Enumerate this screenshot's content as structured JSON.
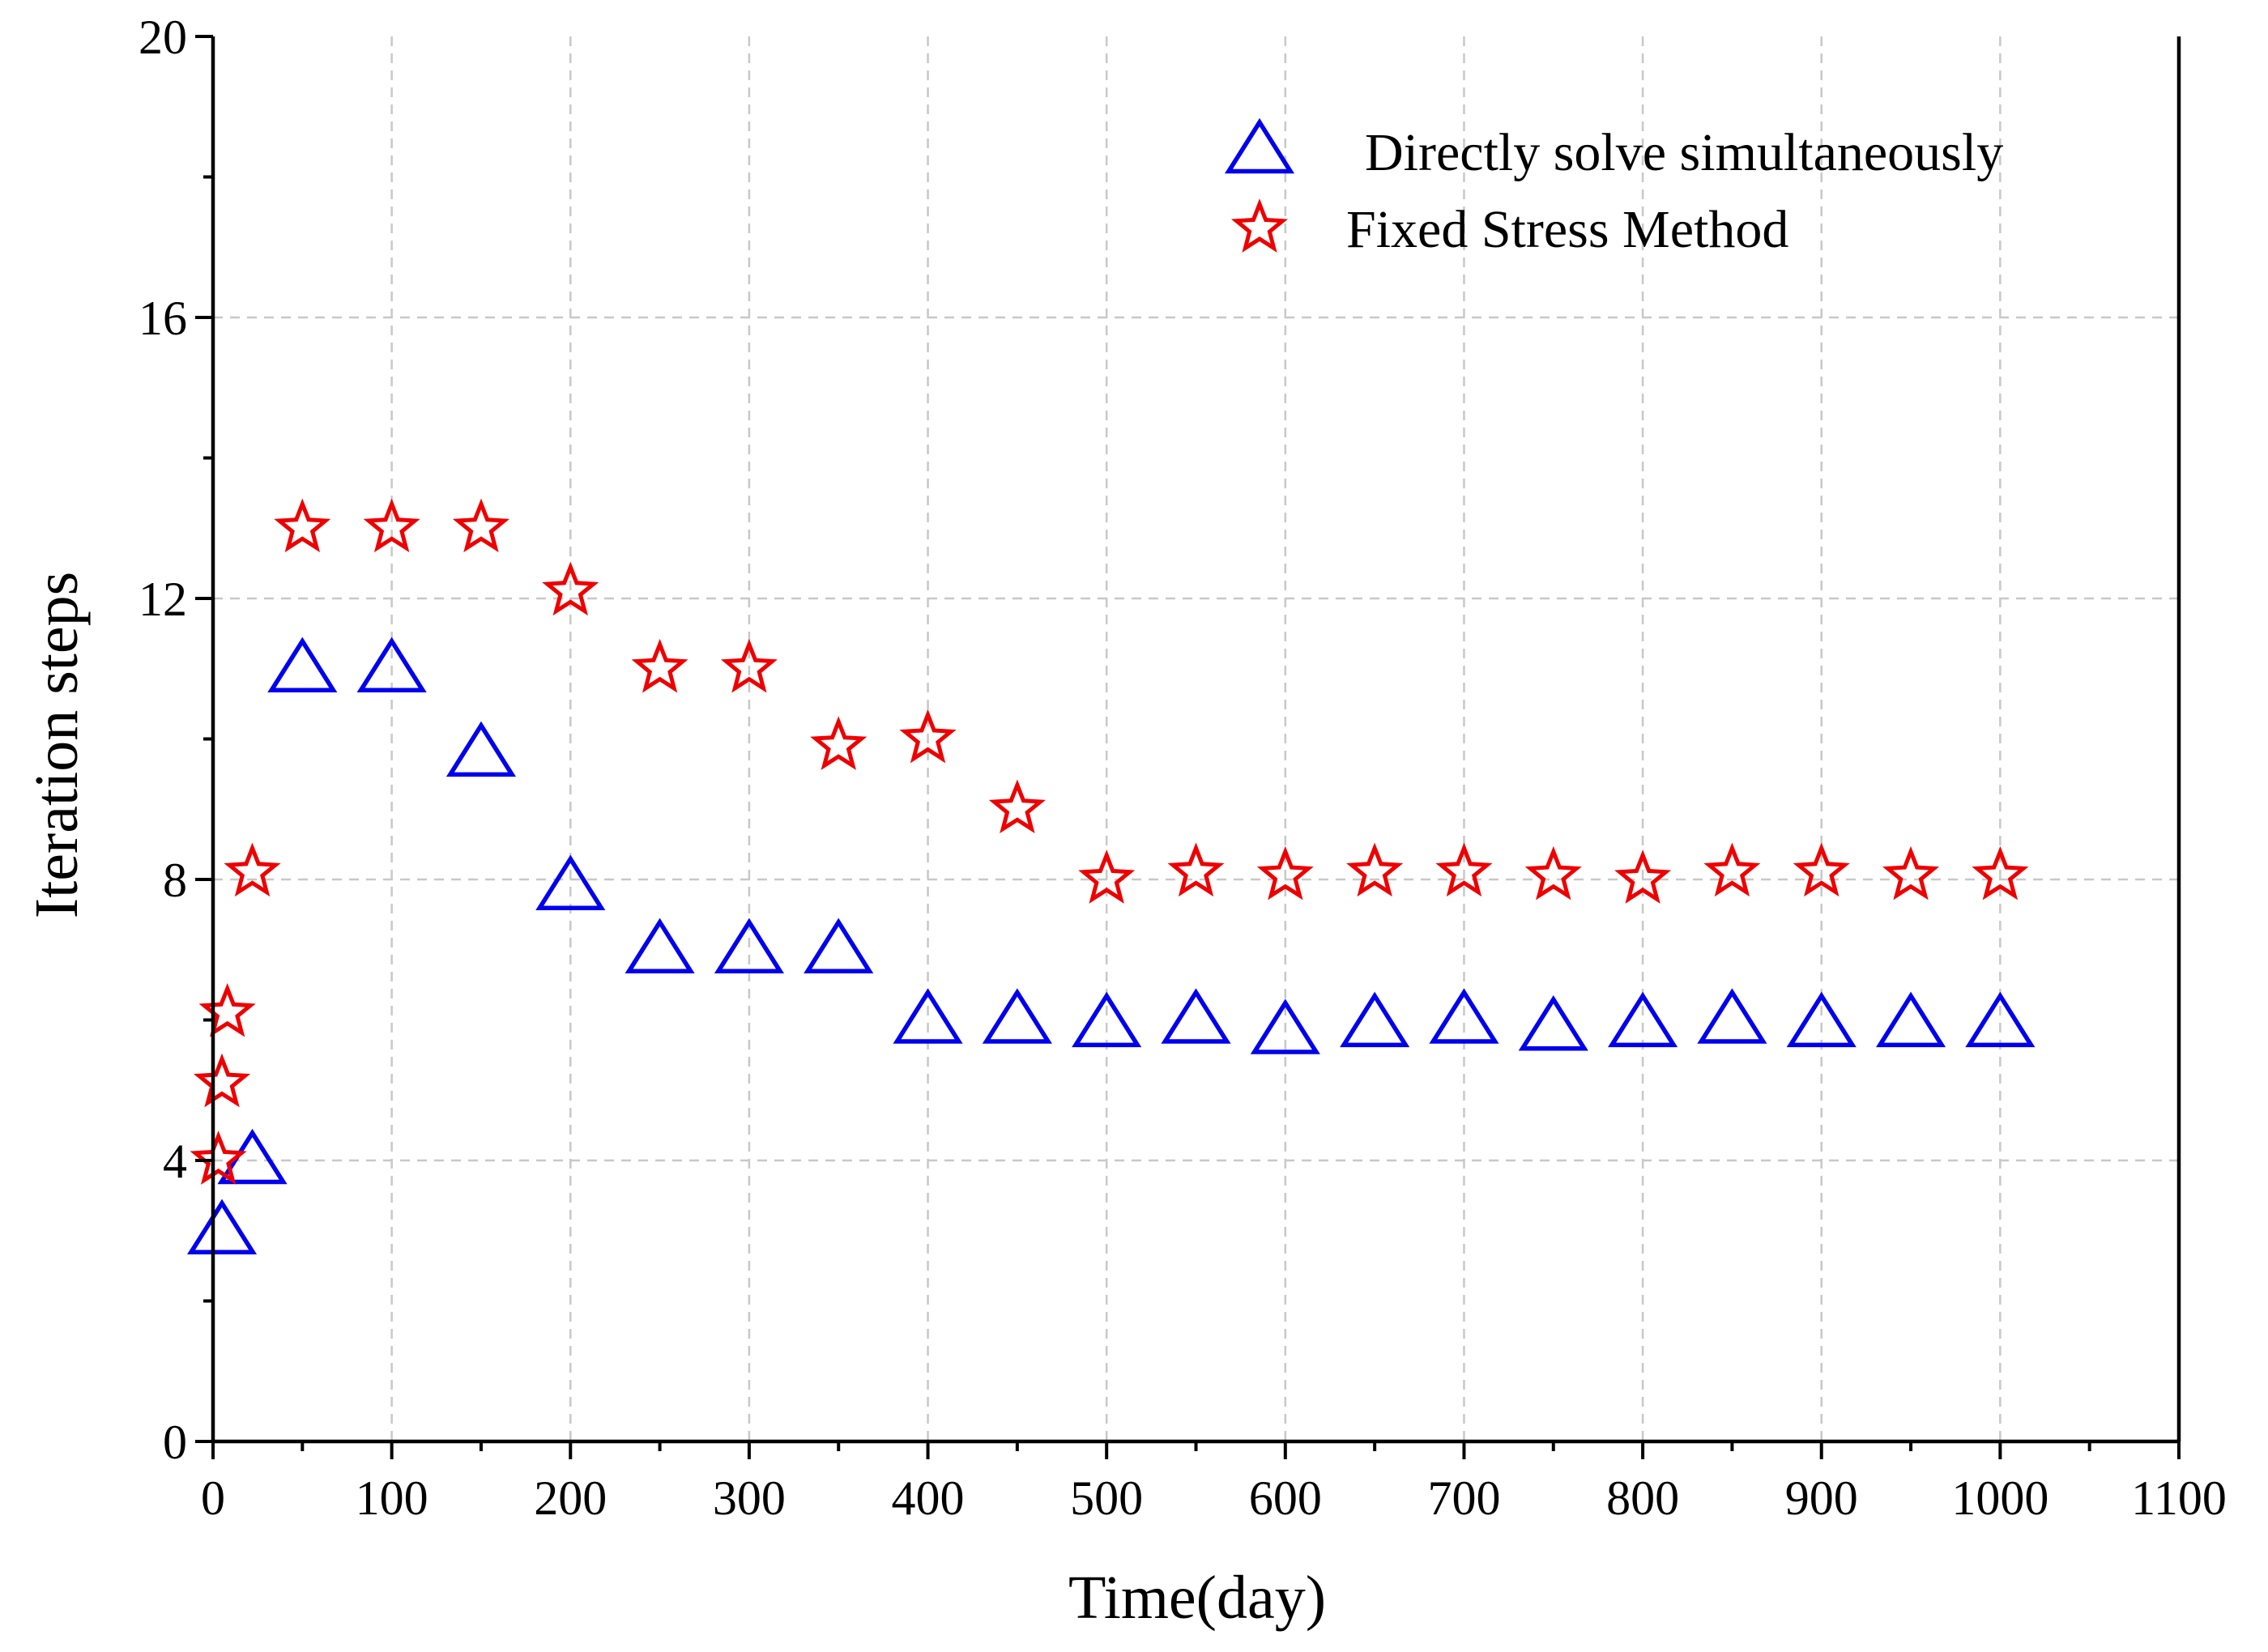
{
  "chart_data": {
    "type": "scatter",
    "title": "",
    "xlabel": "Time(day)",
    "ylabel": "Iteration steps",
    "xlim": [
      0,
      1100
    ],
    "ylim": [
      0,
      20
    ],
    "xticks": [
      0,
      100,
      200,
      300,
      400,
      500,
      600,
      700,
      800,
      900,
      1000,
      1100
    ],
    "yticks": [
      0,
      4,
      8,
      12,
      16,
      20
    ],
    "grid": true,
    "legend_position": "top-right",
    "series": [
      {
        "name": "Directly solve simultaneously",
        "marker": "triangle-open",
        "color": "#0000ee",
        "x": [
          5,
          22,
          50,
          100,
          150,
          200,
          250,
          300,
          350,
          400,
          450,
          500,
          550,
          600,
          650,
          700,
          750,
          800,
          850,
          900,
          950,
          1000
        ],
        "y": [
          3,
          4,
          11,
          11,
          9.8,
          7.9,
          7,
          7,
          7,
          6,
          6,
          5.95,
          6,
          5.85,
          5.95,
          6,
          5.9,
          5.95,
          6,
          5.95,
          5.95,
          5.95
        ]
      },
      {
        "name": "Fixed Stress Method",
        "marker": "star-open",
        "color": "#ee0000",
        "x": [
          3,
          5,
          8,
          22,
          50,
          100,
          150,
          200,
          250,
          300,
          350,
          400,
          450,
          500,
          550,
          600,
          650,
          700,
          750,
          800,
          850,
          900,
          950,
          1000
        ],
        "y": [
          4,
          5.1,
          6.1,
          8.1,
          13,
          13,
          13,
          12.1,
          11,
          11,
          9.9,
          10,
          9,
          8,
          8.1,
          8.05,
          8.1,
          8.1,
          8.05,
          8,
          8.1,
          8.1,
          8.05,
          8.05
        ]
      }
    ]
  }
}
